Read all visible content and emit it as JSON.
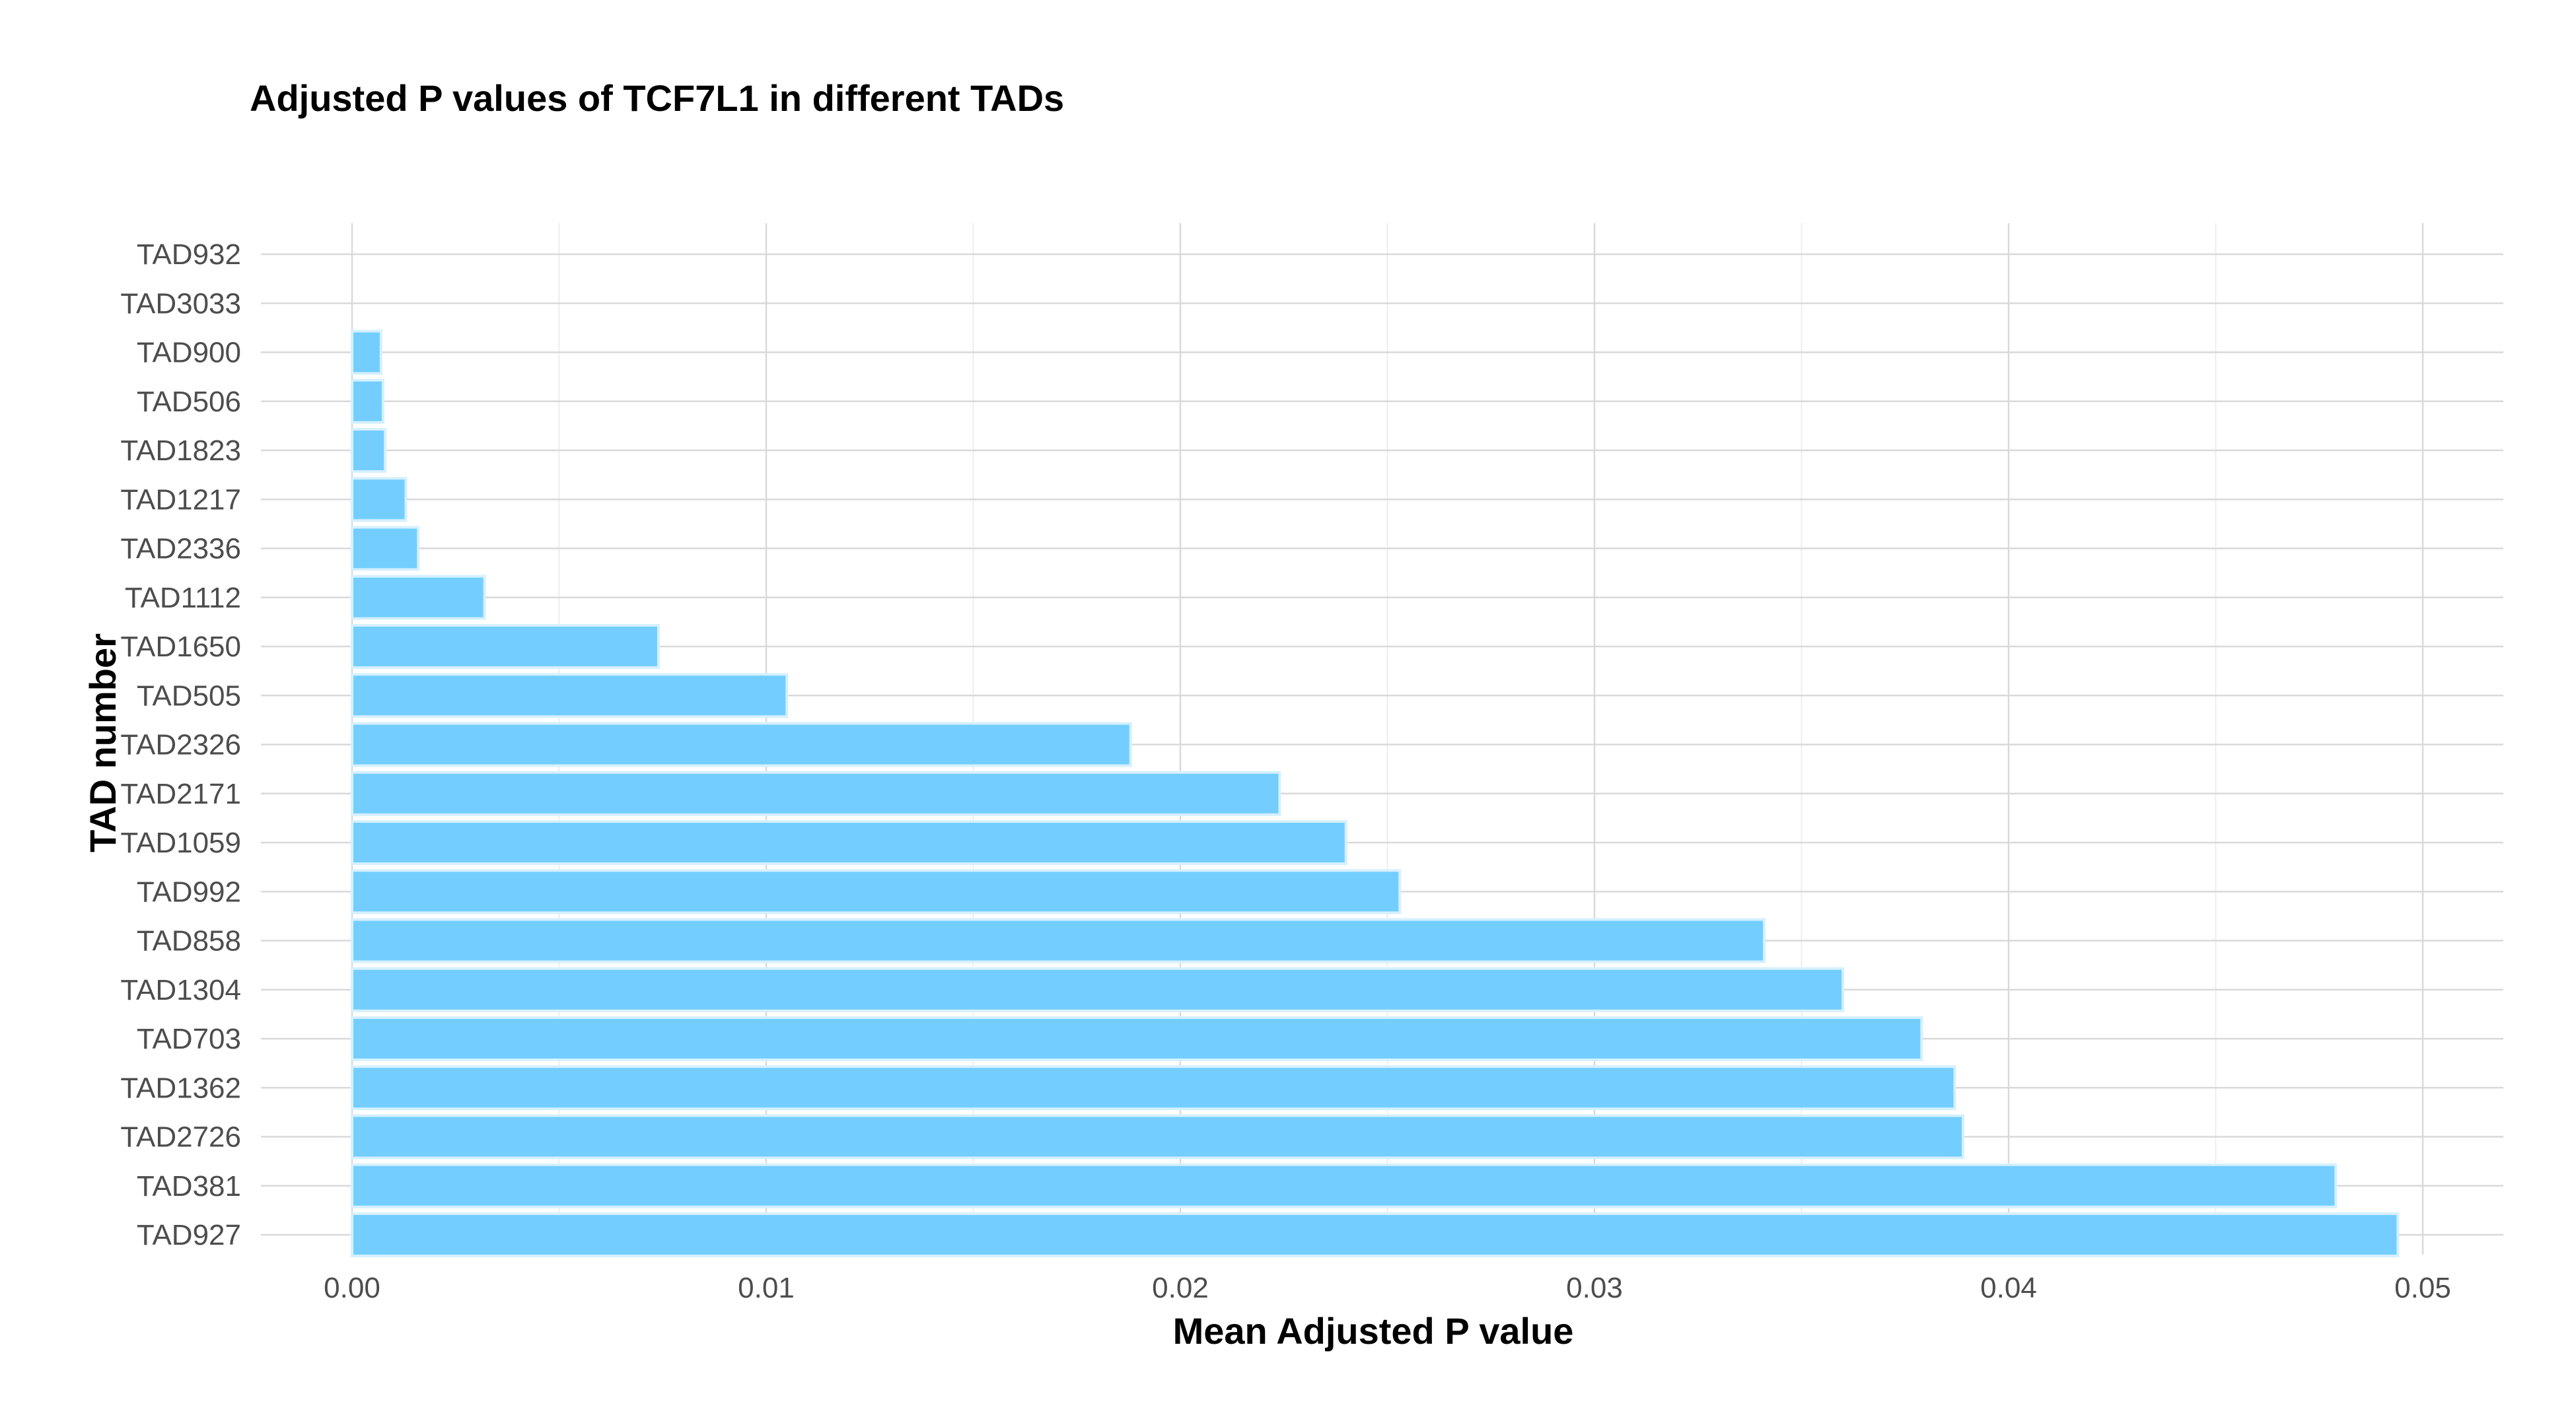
{
  "chart_data": {
    "type": "bar",
    "orientation": "horizontal",
    "title": "Adjusted P values of TCF7L1 in different TADs",
    "xlabel": "Mean Adjusted P value",
    "ylabel": "TAD number",
    "xlim": [
      0,
      0.05
    ],
    "x_ticks": [
      "0.00",
      "0.01",
      "0.02",
      "0.03",
      "0.04",
      "0.05"
    ],
    "grid": true,
    "bar_color": "#73ceff",
    "categories": [
      "TAD932",
      "TAD3033",
      "TAD900",
      "TAD506",
      "TAD1823",
      "TAD1217",
      "TAD2336",
      "TAD1112",
      "TAD1650",
      "TAD505",
      "TAD2326",
      "TAD2171",
      "TAD1059",
      "TAD992",
      "TAD858",
      "TAD1304",
      "TAD703",
      "TAD1362",
      "TAD2726",
      "TAD381",
      "TAD927"
    ],
    "values": [
      0,
      0,
      0.0007,
      0.00075,
      0.0008,
      0.0013,
      0.0016,
      0.0032,
      0.0074,
      0.0105,
      0.0188,
      0.0224,
      0.024,
      0.0253,
      0.0341,
      0.036,
      0.0379,
      0.0387,
      0.0389,
      0.0479,
      0.0494
    ]
  }
}
